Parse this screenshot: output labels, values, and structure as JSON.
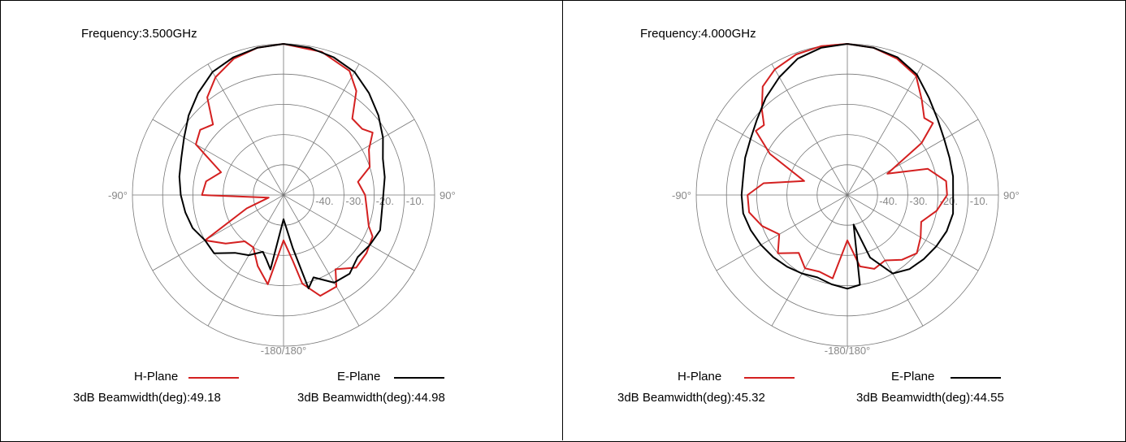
{
  "chart_data": [
    {
      "type": "polar-line",
      "title": "Frequency:3.500GHz",
      "angle_labels": {
        "left": "-90°",
        "right": "90°",
        "bottom": "-180/180°"
      },
      "radial_ticks": [
        "-40.",
        "-30.",
        "-20.",
        "-10."
      ],
      "r_range_db": [
        -50,
        0
      ],
      "series": [
        {
          "name": "H-Plane",
          "color": "#d42020",
          "beamwidth_label": "3dB Beamwidth(deg):49.18",
          "angles_deg": [
            0,
            15,
            28,
            35,
            42,
            50,
            55,
            62,
            72,
            80,
            90,
            100,
            110,
            115,
            125,
            135,
            145,
            150,
            160,
            168,
            172,
            180,
            -170,
            -160,
            -150,
            -140,
            -130,
            -120,
            -110,
            -100,
            -90,
            -80,
            -70,
            -60,
            -52,
            -45,
            -38,
            -30,
            -20,
            -10
          ],
          "gain_db": [
            0,
            -1,
            -3.5,
            -8,
            -16,
            -16,
            -14,
            -18,
            -20,
            -25,
            -23,
            -22,
            -20,
            -17.5,
            -16.5,
            -16,
            -20,
            -15,
            -14.5,
            -20,
            -28,
            -35,
            -20,
            -25,
            -30,
            -30,
            -25,
            -20,
            -37,
            -45,
            -23,
            -24,
            -28,
            -16.5,
            -15,
            -17,
            -9,
            -5,
            -2,
            -0.5
          ]
        },
        {
          "name": "E-Plane",
          "color": "#000000",
          "beamwidth_label": "3dB Beamwidth(deg):44.98",
          "angles_deg": [
            0,
            10,
            20,
            30,
            40,
            50,
            60,
            70,
            80,
            90,
            100,
            110,
            120,
            130,
            140,
            150,
            160,
            165,
            170,
            180,
            -170,
            -165,
            -160,
            -150,
            -140,
            -130,
            -120,
            -110,
            -100,
            -90,
            -80,
            -70,
            -60,
            -50,
            -40,
            -30,
            -20,
            -10
          ],
          "gain_db": [
            0,
            -0.5,
            -1.5,
            -3,
            -6,
            -9,
            -12,
            -15,
            -16,
            -17,
            -17,
            -16,
            -17,
            -18,
            -16,
            -16.5,
            -21,
            -18,
            -32,
            -42,
            -25,
            -28,
            -30,
            -27,
            -25,
            -20,
            -20,
            -18,
            -17,
            -16,
            -15,
            -14,
            -12,
            -9,
            -6,
            -3,
            -1.5,
            -0.5
          ]
        }
      ]
    },
    {
      "type": "polar-line",
      "title": "Frequency:4.000GHz",
      "angle_labels": {
        "left": "-90°",
        "right": "90°",
        "bottom": "-180/180°"
      },
      "radial_ticks": [
        "-40.",
        "-30.",
        "-20.",
        "-10."
      ],
      "r_range_db": [
        -50,
        0
      ],
      "series": [
        {
          "name": "H-Plane",
          "color": "#d42020",
          "beamwidth_label": "3dB Beamwidth(deg):45.32",
          "angles_deg": [
            0,
            10,
            20,
            30,
            38,
            45,
            50,
            55,
            62,
            72,
            82,
            90,
            100,
            110,
            120,
            130,
            140,
            150,
            160,
            170,
            180,
            -170,
            -160,
            -150,
            -140,
            -130,
            -120,
            -110,
            -100,
            -90,
            -82,
            -72,
            -62,
            -55,
            -50,
            -45,
            -38,
            -30,
            -20,
            -10
          ],
          "gain_db": [
            0,
            -0.5,
            -2,
            -4.5,
            -10,
            -14,
            -13,
            -20,
            -35,
            -22,
            -17,
            -17,
            -20,
            -24,
            -22,
            -20,
            -22,
            -25,
            -24,
            -26,
            -35,
            -22,
            -23,
            -22,
            -25,
            -20,
            -24,
            -20,
            -17,
            -17,
            -22,
            -35,
            -21,
            -13,
            -14,
            -10,
            -4.5,
            -2,
            -0.5,
            0
          ]
        },
        {
          "name": "E-Plane",
          "color": "#000000",
          "beamwidth_label": "3dB Beamwidth(deg):44.55",
          "angles_deg": [
            0,
            10,
            20,
            30,
            40,
            50,
            60,
            70,
            80,
            90,
            100,
            110,
            120,
            130,
            140,
            150,
            160,
            168,
            172,
            180,
            -170,
            -160,
            -150,
            -140,
            -130,
            -120,
            -110,
            -100,
            -90,
            -80,
            -70,
            -60,
            -50,
            -40,
            -30,
            -20,
            -10
          ],
          "gain_db": [
            0,
            -0.5,
            -1.5,
            -4,
            -8,
            -11,
            -13,
            -14,
            -14.5,
            -15,
            -14.5,
            -15,
            -16,
            -17,
            -18,
            -20,
            -28,
            -40,
            -20,
            -19,
            -20,
            -21,
            -20,
            -19,
            -18,
            -17,
            -16,
            -15,
            -15,
            -15,
            -14,
            -13,
            -11,
            -8,
            -5,
            -2,
            -0.5
          ]
        }
      ]
    }
  ]
}
